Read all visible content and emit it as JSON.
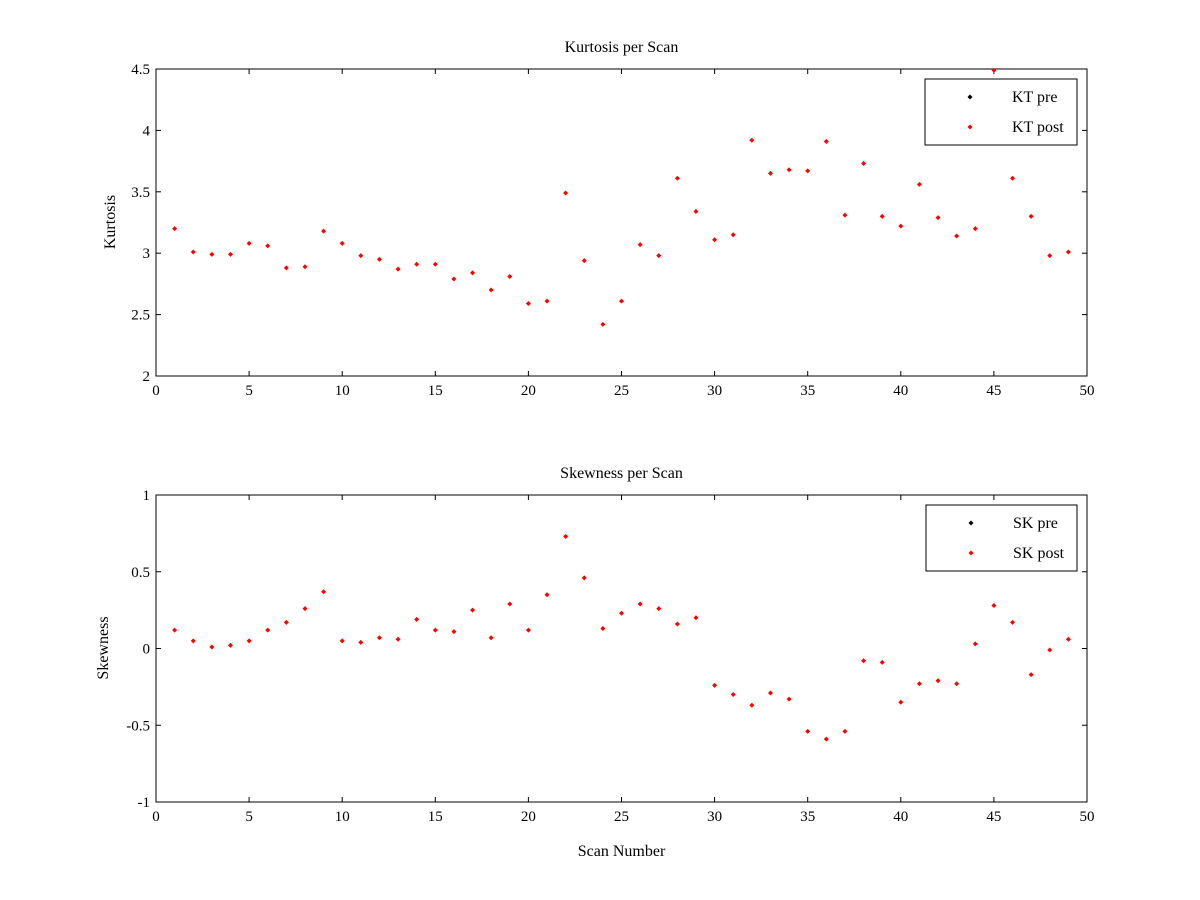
{
  "chart_data": [
    {
      "type": "scatter",
      "title": "Kurtosis per Scan",
      "xlabel": "",
      "ylabel": "Kurtosis",
      "xlim": [
        0,
        50
      ],
      "ylim": [
        2,
        4.5
      ],
      "xticks": [
        "0",
        "5",
        "10",
        "15",
        "20",
        "25",
        "30",
        "35",
        "40",
        "45",
        "50"
      ],
      "yticks": [
        "2",
        "2.5",
        "3",
        "3.5",
        "4",
        "4.5"
      ],
      "grid": false,
      "legend": "top-right",
      "series": [
        {
          "name": "KT pre",
          "color": "#000000",
          "x": [],
          "y": []
        },
        {
          "name": "KT post",
          "color": "#ff0000",
          "x": [
            1,
            2,
            3,
            4,
            5,
            6,
            7,
            8,
            9,
            10,
            11,
            12,
            13,
            14,
            15,
            16,
            17,
            18,
            19,
            20,
            21,
            22,
            23,
            24,
            25,
            26,
            27,
            28,
            29,
            30,
            31,
            32,
            33,
            34,
            35,
            36,
            37,
            38,
            39,
            40,
            41,
            42,
            43,
            44,
            45,
            46,
            47,
            48,
            49
          ],
          "y": [
            3.2,
            3.01,
            2.99,
            2.99,
            3.08,
            3.06,
            2.88,
            2.89,
            3.18,
            3.08,
            2.98,
            2.95,
            2.87,
            2.91,
            2.91,
            2.79,
            2.84,
            2.7,
            2.81,
            2.59,
            2.61,
            3.49,
            2.94,
            2.42,
            2.61,
            3.07,
            2.98,
            3.61,
            3.34,
            3.11,
            3.15,
            3.92,
            3.65,
            3.68,
            3.67,
            3.91,
            3.31,
            3.73,
            3.3,
            3.22,
            3.56,
            3.29,
            3.14,
            3.2,
            4.49,
            3.61,
            3.3,
            2.98,
            3.01
          ]
        }
      ]
    },
    {
      "type": "scatter",
      "title": "Skewness per Scan",
      "xlabel": "Scan Number",
      "ylabel": "Skewness",
      "xlim": [
        0,
        50
      ],
      "ylim": [
        -1,
        1
      ],
      "xticks": [
        "0",
        "5",
        "10",
        "15",
        "20",
        "25",
        "30",
        "35",
        "40",
        "45",
        "50"
      ],
      "yticks": [
        "-1",
        "-0.5",
        "0",
        "0.5",
        "1"
      ],
      "grid": false,
      "legend": "top-right",
      "series": [
        {
          "name": "SK pre",
          "color": "#000000",
          "x": [],
          "y": []
        },
        {
          "name": "SK post",
          "color": "#ff0000",
          "x": [
            1,
            2,
            3,
            4,
            5,
            6,
            7,
            8,
            9,
            10,
            11,
            12,
            13,
            14,
            15,
            16,
            17,
            18,
            19,
            20,
            21,
            22,
            23,
            24,
            25,
            26,
            27,
            28,
            29,
            30,
            31,
            32,
            33,
            34,
            35,
            36,
            37,
            38,
            39,
            40,
            41,
            42,
            43,
            44,
            45,
            46,
            47,
            48,
            49
          ],
          "y": [
            0.12,
            0.05,
            0.01,
            0.02,
            0.05,
            0.12,
            0.17,
            0.26,
            0.37,
            0.05,
            0.04,
            0.07,
            0.06,
            0.19,
            0.12,
            0.11,
            0.25,
            0.07,
            0.29,
            0.12,
            0.35,
            0.73,
            0.46,
            0.13,
            0.23,
            0.29,
            0.26,
            0.16,
            0.2,
            -0.24,
            -0.3,
            -0.37,
            -0.29,
            -0.33,
            -0.54,
            -0.59,
            -0.54,
            -0.08,
            -0.09,
            -0.35,
            -0.23,
            -0.21,
            -0.23,
            0.03,
            0.28,
            0.17,
            -0.17,
            -0.01,
            0.06
          ]
        }
      ]
    }
  ]
}
